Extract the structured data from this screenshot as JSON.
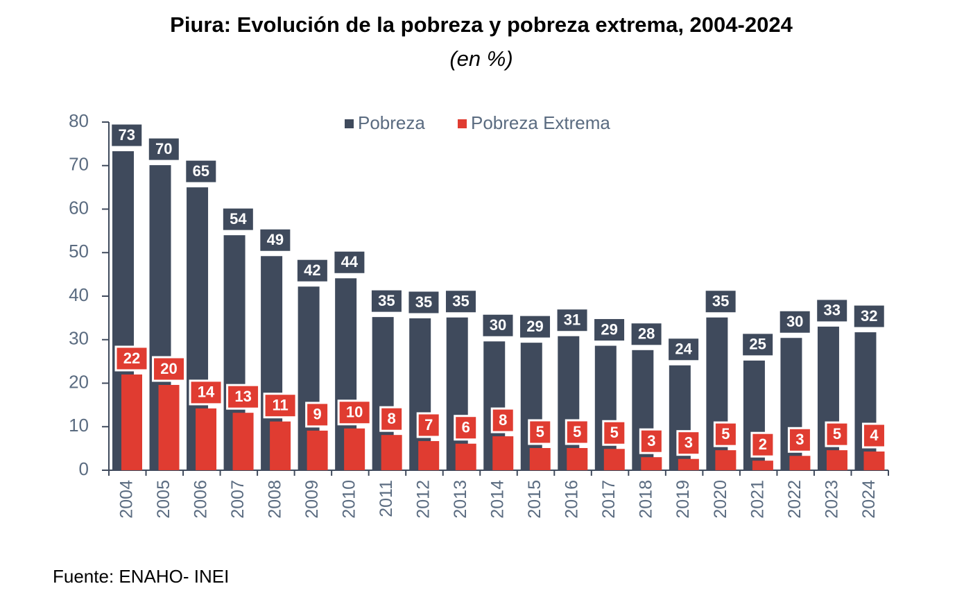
{
  "chart_data": {
    "type": "bar",
    "title": "Piura: Evolución de la pobreza y pobreza extrema, 2004-2024",
    "subtitle": "(en %)",
    "source": "Fuente: ENAHO- INEI",
    "categories": [
      "2004",
      "2005",
      "2006",
      "2007",
      "2008",
      "2009",
      "2010",
      "2011",
      "2012",
      "2013",
      "2014",
      "2015",
      "2016",
      "2017",
      "2018",
      "2019",
      "2020",
      "2021",
      "2022",
      "2023",
      "2024"
    ],
    "series": [
      {
        "name": "Pobreza",
        "color": "#3f4a5c",
        "values": [
          73.3,
          70.1,
          65.0,
          54.0,
          49.2,
          42.2,
          44.1,
          35.2,
          34.9,
          35.1,
          29.6,
          29.3,
          30.8,
          28.6,
          27.6,
          24.1,
          35.1,
          25.2,
          30.4,
          33.0,
          31.7
        ],
        "value_labels": [
          "73",
          "70",
          "65",
          "54",
          "49",
          "42",
          "44",
          "35",
          "35",
          "35",
          "30",
          "29",
          "31",
          "29",
          "28",
          "24",
          "35",
          "25",
          "30",
          "33",
          "32"
        ]
      },
      {
        "name": "Pobreza Extrema",
        "color": "#e03c31",
        "values": [
          22.0,
          19.6,
          14.2,
          13.2,
          11.2,
          9.1,
          9.6,
          8.1,
          6.7,
          6.1,
          7.8,
          5.1,
          5.1,
          4.9,
          3.0,
          2.6,
          4.6,
          2.2,
          3.3,
          4.6,
          4.3
        ],
        "value_labels": [
          "22",
          "20",
          "14",
          "13",
          "11",
          "9",
          "10",
          "8",
          "7",
          "6",
          "8",
          "5",
          "5",
          "5",
          "3",
          "3",
          "5",
          "2",
          "3",
          "5",
          "4"
        ]
      }
    ],
    "ylim": [
      0,
      80
    ],
    "yticks": [
      0,
      10,
      20,
      30,
      40,
      50,
      60,
      70,
      80
    ],
    "grid": false
  }
}
